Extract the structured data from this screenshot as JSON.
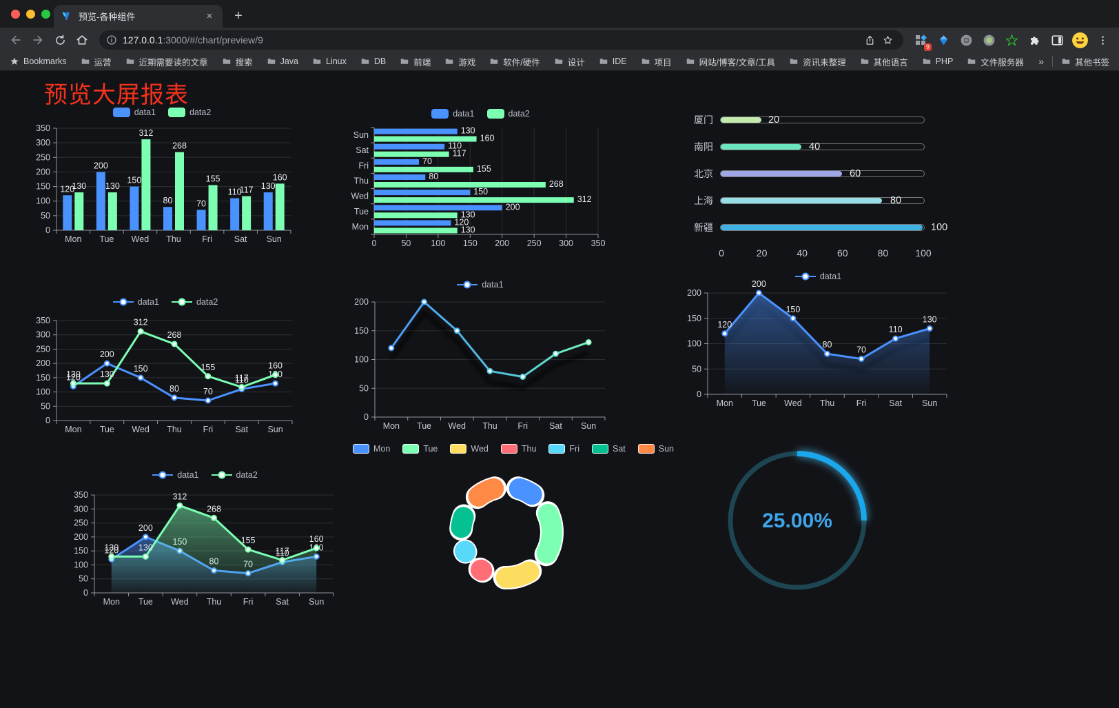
{
  "browser": {
    "tab": {
      "title": "预览-各种组件",
      "close": "×",
      "new_tab": "+"
    },
    "address": {
      "host": "127.0.0.1",
      "rest": ":3000/#/chart/preview/9"
    },
    "extensions_badge": "9",
    "bookmarks": {
      "star_label": "Bookmarks",
      "folders": [
        "运营",
        "近期需要读的文章",
        "搜索",
        "Java",
        "Linux",
        "DB",
        "前端",
        "游戏",
        "软件/硬件",
        "设计",
        "IDE",
        "项目",
        "网站/博客/文章/工具",
        "资讯未整理",
        "其他语言",
        "PHP",
        "文件服务器"
      ],
      "overflow": "»",
      "other": "其他书签"
    }
  },
  "page": {
    "title": "预览大屏报表",
    "title_color": "#f5321c"
  },
  "chart_data": [
    {
      "id": "bar-vertical",
      "type": "bar",
      "categories": [
        "Mon",
        "Tue",
        "Wed",
        "Thu",
        "Fri",
        "Sat",
        "Sun"
      ],
      "series": [
        {
          "name": "data1",
          "color": "#4992ff",
          "values": [
            120,
            200,
            150,
            80,
            70,
            110,
            130
          ]
        },
        {
          "name": "data2",
          "color": "#7cffb2",
          "values": [
            130,
            130,
            312,
            268,
            155,
            117,
            160
          ]
        }
      ],
      "ylim": [
        0,
        350
      ],
      "ytick": 50,
      "value_labels": true,
      "legend_position": "top"
    },
    {
      "id": "bar-horizontal",
      "type": "bar-horizontal",
      "categories": [
        "Mon",
        "Tue",
        "Wed",
        "Thu",
        "Fri",
        "Sat",
        "Sun"
      ],
      "series": [
        {
          "name": "data1",
          "color": "#4992ff",
          "values": [
            120,
            200,
            150,
            80,
            70,
            110,
            130
          ]
        },
        {
          "name": "data2",
          "color": "#7cffb2",
          "values": [
            130,
            130,
            312,
            268,
            155,
            117,
            160
          ]
        }
      ],
      "xlim": [
        0,
        350
      ],
      "xtick": 50,
      "value_labels": true,
      "legend_position": "top"
    },
    {
      "id": "progress-list",
      "type": "progress",
      "max": 100,
      "items": [
        {
          "label": "厦门",
          "value": 20,
          "color": "#c4ebad"
        },
        {
          "label": "南阳",
          "value": 40,
          "color": "#6be6c1"
        },
        {
          "label": "北京",
          "value": 60,
          "color": "#a0a7e6"
        },
        {
          "label": "上海",
          "value": 80,
          "color": "#96dee8"
        },
        {
          "label": "新疆",
          "value": 100,
          "color": "#3fb1e3"
        }
      ],
      "axis_ticks": [
        0,
        20,
        40,
        60,
        80,
        100
      ]
    },
    {
      "id": "line-basic",
      "type": "line",
      "categories": [
        "Mon",
        "Tue",
        "Wed",
        "Thu",
        "Fri",
        "Sat",
        "Sun"
      ],
      "series": [
        {
          "name": "data1",
          "color": "#4992ff",
          "values": [
            120,
            200,
            150,
            80,
            70,
            110,
            130
          ]
        },
        {
          "name": "data2",
          "color": "#7cffb2",
          "values": [
            130,
            130,
            312,
            268,
            155,
            117,
            160
          ]
        }
      ],
      "ylim": [
        0,
        350
      ],
      "ytick": 50,
      "value_labels": true
    },
    {
      "id": "line-gradient",
      "type": "line",
      "categories": [
        "Mon",
        "Tue",
        "Wed",
        "Thu",
        "Fri",
        "Sat",
        "Sun"
      ],
      "series": [
        {
          "name": "data1",
          "gradient": [
            "#4992ff",
            "#7cffb2"
          ],
          "values": [
            120,
            200,
            150,
            80,
            70,
            110,
            130
          ]
        }
      ],
      "ylim": [
        0,
        200
      ],
      "ytick": 50,
      "value_labels": false,
      "shadow": true
    },
    {
      "id": "line-area",
      "type": "line",
      "categories": [
        "Mon",
        "Tue",
        "Wed",
        "Thu",
        "Fri",
        "Sat",
        "Sun"
      ],
      "series": [
        {
          "name": "data1",
          "color": "#4992ff",
          "area": true,
          "values": [
            120,
            200,
            150,
            80,
            70,
            110,
            130
          ]
        }
      ],
      "ylim": [
        0,
        200
      ],
      "ytick": 50,
      "value_labels": true,
      "shadow": true
    },
    {
      "id": "area-two",
      "type": "line",
      "categories": [
        "Mon",
        "Tue",
        "Wed",
        "Thu",
        "Fri",
        "Sat",
        "Sun"
      ],
      "series": [
        {
          "name": "data1",
          "color": "#4992ff",
          "area": true,
          "values": [
            120,
            200,
            150,
            80,
            70,
            110,
            130
          ]
        },
        {
          "name": "data2",
          "color": "#7cffb2",
          "area": true,
          "values": [
            130,
            130,
            312,
            268,
            155,
            117,
            160
          ]
        }
      ],
      "ylim": [
        0,
        350
      ],
      "ytick": 50,
      "value_labels": true
    },
    {
      "id": "donut",
      "type": "pie",
      "items": [
        {
          "label": "Mon",
          "value": 120,
          "color": "#4992ff"
        },
        {
          "label": "Tue",
          "value": 200,
          "color": "#7cffb2"
        },
        {
          "label": "Wed",
          "value": 150,
          "color": "#fddd60"
        },
        {
          "label": "Thu",
          "value": 80,
          "color": "#ff6e76"
        },
        {
          "label": "Fri",
          "value": 70,
          "color": "#58d9f9"
        },
        {
          "label": "Sat",
          "value": 110,
          "color": "#05c091"
        },
        {
          "label": "Sun",
          "value": 130,
          "color": "#ff8a45"
        }
      ]
    },
    {
      "id": "gauge",
      "type": "gauge",
      "value": 25,
      "display": "25.00%",
      "color": "#1aa7ec",
      "track_color": "#1d4552",
      "text_color": "#3ea6ea"
    }
  ]
}
